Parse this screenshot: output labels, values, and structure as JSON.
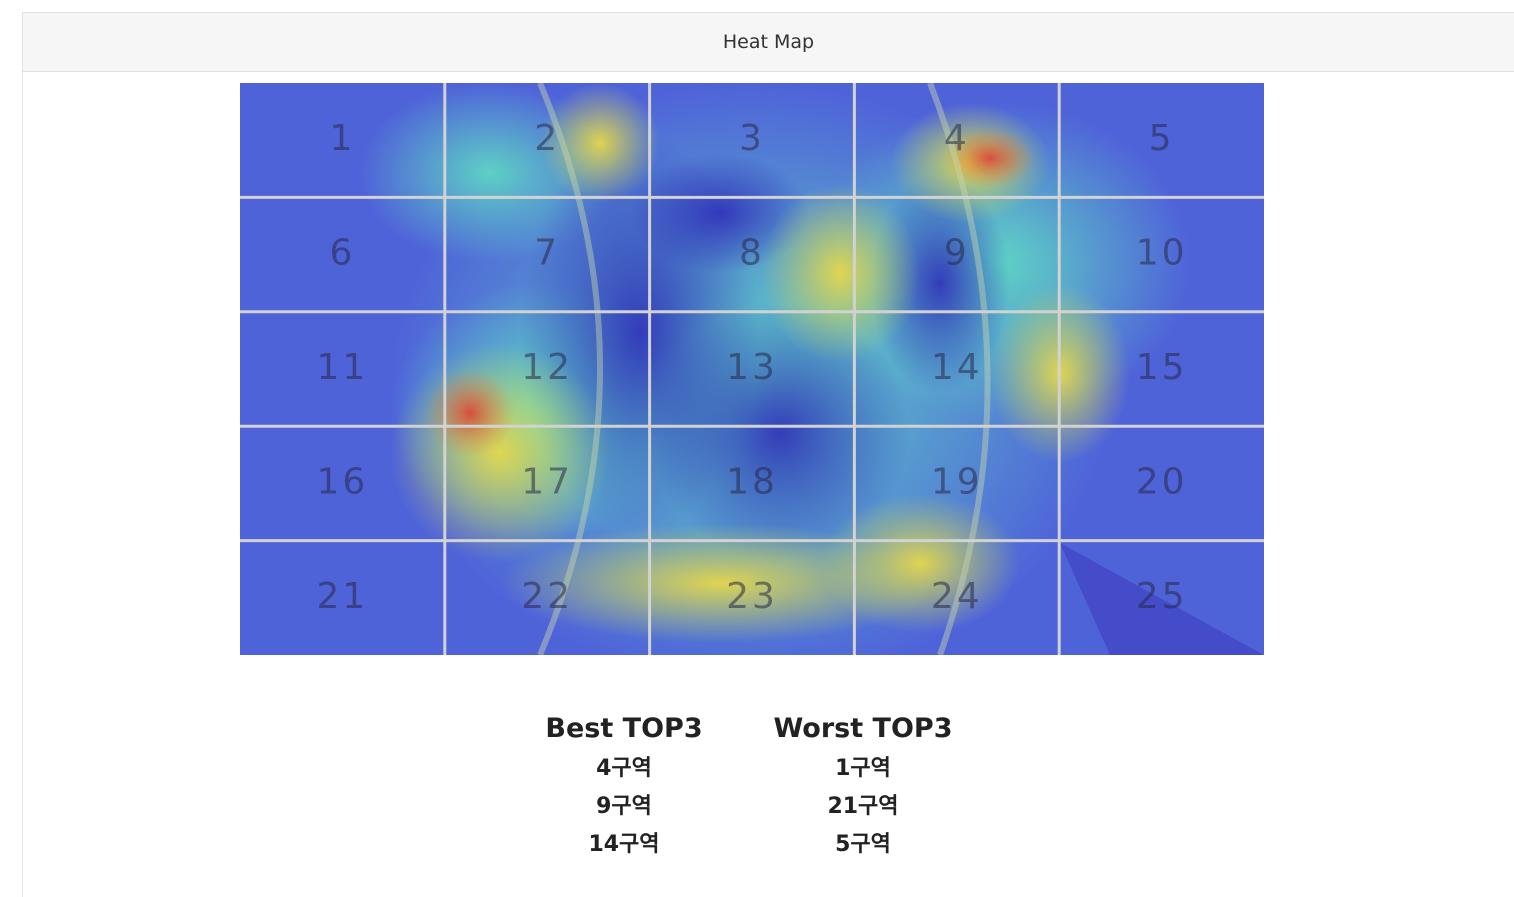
{
  "header": {
    "title": "Heat Map"
  },
  "heatmap": {
    "cells": [
      "1",
      "2",
      "3",
      "4",
      "5",
      "6",
      "7",
      "8",
      "9",
      "10",
      "11",
      "12",
      "13",
      "14",
      "15",
      "16",
      "17",
      "18",
      "19",
      "20",
      "21",
      "22",
      "23",
      "24",
      "25"
    ]
  },
  "best": {
    "title": "Best TOP3",
    "items": [
      "4구역",
      "9구역",
      "14구역"
    ]
  },
  "worst": {
    "title": "Worst TOP3",
    "items": [
      "1구역",
      "21구역",
      "5구역"
    ]
  }
}
